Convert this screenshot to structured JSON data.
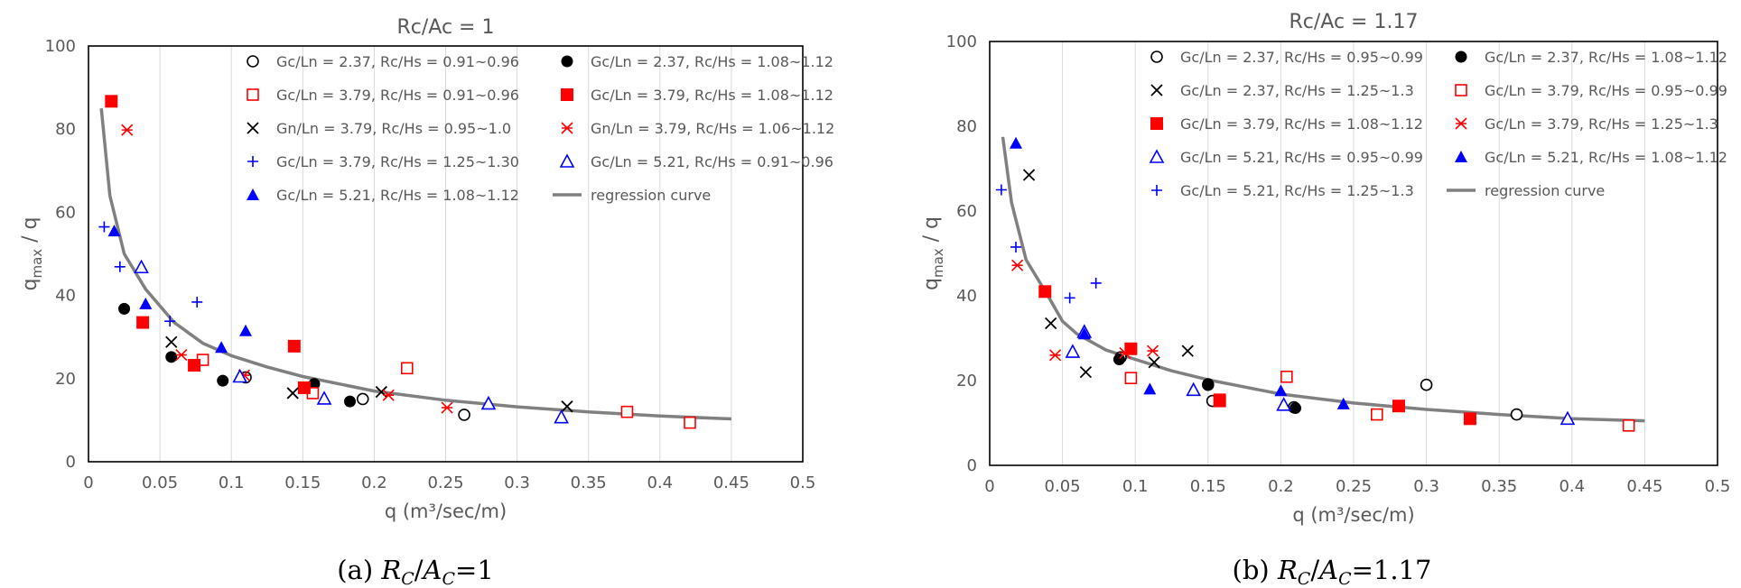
{
  "captions": [
    "(a) R_C/A_C=1",
    "(b) R_C/A_C=1.17"
  ],
  "chart_data": [
    {
      "type": "scatter",
      "title": "Rc/Ac = 1",
      "xlabel": "q (m³/sec/m)",
      "ylabel": "q_max / q",
      "xlim": [
        0,
        0.5
      ],
      "ylim": [
        0,
        100
      ],
      "xticks": [
        "0",
        "0.05",
        "0.1",
        "0.15",
        "0.2",
        "0.25",
        "0.3",
        "0.35",
        "0.4",
        "0.45",
        "0.5"
      ],
      "yticks": [
        "0",
        "20",
        "40",
        "60",
        "80",
        "100"
      ],
      "grid": "vertical",
      "legend_position": "top-right",
      "series": [
        {
          "name": "Gc/Ln = 2.37, Rc/Hs = 0.91~0.96",
          "marker": "circle-open",
          "color": "#000000",
          "points": [
            [
              0.11,
              20.3
            ],
            [
              0.192,
              15.1
            ],
            [
              0.263,
              11.3
            ]
          ]
        },
        {
          "name": "Gc/Ln = 2.37, Rc/Hs = 1.08~1.12",
          "marker": "circle-filled",
          "color": "#000000",
          "points": [
            [
              0.025,
              36.8
            ],
            [
              0.058,
              25.2
            ],
            [
              0.094,
              19.5
            ],
            [
              0.158,
              18.7
            ],
            [
              0.183,
              14.5
            ]
          ]
        },
        {
          "name": "Gc/Ln = 3.79, Rc/Hs = 0.91~0.96",
          "marker": "square-open",
          "color": "#ff0000",
          "points": [
            [
              0.08,
              24.5
            ],
            [
              0.157,
              16.5
            ],
            [
              0.223,
              22.5
            ],
            [
              0.377,
              12.0
            ],
            [
              0.421,
              9.4
            ]
          ]
        },
        {
          "name": "Gc/Ln = 3.79, Rc/Hs = 1.08~1.12",
          "marker": "square-filled",
          "color": "#ff0000",
          "points": [
            [
              0.016,
              86.7
            ],
            [
              0.038,
              33.5
            ],
            [
              0.074,
              23.2
            ],
            [
              0.144,
              27.8
            ],
            [
              0.151,
              17.8
            ]
          ]
        },
        {
          "name": "Gn/Ln = 3.79, Rc/Hs = 0.95~1.0",
          "marker": "x",
          "color": "#000000",
          "points": [
            [
              0.058,
              28.8
            ],
            [
              0.143,
              16.5
            ],
            [
              0.205,
              16.8
            ],
            [
              0.335,
              13.3
            ]
          ]
        },
        {
          "name": "Gn/Ln = 3.79, Rc/Hs = 1.06~1.12",
          "marker": "asterisk",
          "color": "#ff0000",
          "points": [
            [
              0.027,
              79.8
            ],
            [
              0.065,
              25.7
            ],
            [
              0.109,
              20.8
            ],
            [
              0.21,
              16.0
            ],
            [
              0.251,
              13.0
            ]
          ]
        },
        {
          "name": "Gc/Ln = 3.79, Rc/Hs = 1.25~1.30",
          "marker": "plus",
          "color": "#0000ff",
          "points": [
            [
              0.011,
              56.5
            ],
            [
              0.022,
              46.9
            ],
            [
              0.057,
              33.8
            ],
            [
              0.076,
              38.4
            ]
          ]
        },
        {
          "name": "Gc/Ln = 5.21, Rc/Hs = 0.91~0.96",
          "marker": "triangle-open",
          "color": "#0000ff",
          "points": [
            [
              0.037,
              46.8
            ],
            [
              0.106,
              20.5
            ],
            [
              0.165,
              15.2
            ],
            [
              0.28,
              14.0
            ],
            [
              0.331,
              10.7
            ]
          ]
        },
        {
          "name": "Gc/Ln = 5.21, Rc/Hs = 1.08~1.12",
          "marker": "triangle-filled",
          "color": "#0000ff",
          "points": [
            [
              0.018,
              55.5
            ],
            [
              0.04,
              38.0
            ],
            [
              0.093,
              27.5
            ],
            [
              0.11,
              31.5
            ]
          ]
        },
        {
          "name": "regression curve",
          "marker": "line",
          "color": "#808080",
          "points": [
            [
              0.009,
              85.0
            ],
            [
              0.015,
              64.0
            ],
            [
              0.025,
              50.0
            ],
            [
              0.04,
              41.5
            ],
            [
              0.06,
              33.5
            ],
            [
              0.08,
              28.5
            ],
            [
              0.1,
              25.5
            ],
            [
              0.125,
              22.8
            ],
            [
              0.15,
              20.5
            ],
            [
              0.2,
              17.0
            ],
            [
              0.25,
              14.8
            ],
            [
              0.3,
              13.2
            ],
            [
              0.35,
              12.0
            ],
            [
              0.4,
              11.0
            ],
            [
              0.45,
              10.3
            ]
          ]
        }
      ]
    },
    {
      "type": "scatter",
      "title": "Rc/Ac = 1.17",
      "xlabel": "q (m³/sec/m)",
      "ylabel": "q_max / q",
      "xlim": [
        0,
        0.5
      ],
      "ylim": [
        0,
        100
      ],
      "xticks": [
        "0",
        "0.05",
        "0.1",
        "0.15",
        "0.2",
        "0.25",
        "0.3",
        "0.35",
        "0.4",
        "0.45",
        "0.5"
      ],
      "yticks": [
        "0",
        "20",
        "40",
        "60",
        "80",
        "100"
      ],
      "grid": "vertical",
      "legend_position": "top-right",
      "series": [
        {
          "name": "Gc/Ln = 2.37, Rc/Hs = 0.95~0.99",
          "marker": "circle-open",
          "color": "#000000",
          "points": [
            [
              0.09,
              25.5
            ],
            [
              0.15,
              19.0
            ],
            [
              0.153,
              15.2
            ],
            [
              0.209,
              13.7
            ],
            [
              0.3,
              19.0
            ],
            [
              0.362,
              12.0
            ]
          ]
        },
        {
          "name": "Gc/Ln = 2.37, Rc/Hs = 1.08~1.12",
          "marker": "circle-filled",
          "color": "#000000",
          "points": [
            [
              0.089,
              25.0
            ],
            [
              0.15,
              19.2
            ],
            [
              0.21,
              13.5
            ]
          ]
        },
        {
          "name": "Gc/Ln = 2.37, Rc/Hs = 1.25~1.3",
          "marker": "x",
          "color": "#000000",
          "points": [
            [
              0.027,
              68.5
            ],
            [
              0.042,
              33.5
            ],
            [
              0.066,
              22.0
            ],
            [
              0.113,
              24.3
            ],
            [
              0.136,
              27.0
            ]
          ]
        },
        {
          "name": "Gc/Ln = 3.79, Rc/Hs = 0.95~0.99",
          "marker": "square-open",
          "color": "#ff0000",
          "points": [
            [
              0.097,
              20.6
            ],
            [
              0.158,
              15.5
            ],
            [
              0.204,
              20.9
            ],
            [
              0.266,
              12.0
            ],
            [
              0.439,
              9.4
            ]
          ]
        },
        {
          "name": "Gc/Ln = 3.79, Rc/Hs = 1.08~1.12",
          "marker": "square-filled",
          "color": "#ff0000",
          "points": [
            [
              0.038,
              41.0
            ],
            [
              0.097,
              27.5
            ],
            [
              0.158,
              15.2
            ],
            [
              0.281,
              14.0
            ],
            [
              0.33,
              11.0
            ]
          ]
        },
        {
          "name": "Gc/Ln = 3.79, Rc/Hs = 1.25~1.3",
          "marker": "asterisk",
          "color": "#ff0000",
          "points": [
            [
              0.019,
              47.2
            ],
            [
              0.045,
              26.0
            ],
            [
              0.093,
              26.5
            ],
            [
              0.112,
              27.0
            ]
          ]
        },
        {
          "name": "Gc/Ln = 5.21, Rc/Hs = 0.95~0.99",
          "marker": "triangle-open",
          "color": "#0000ff",
          "points": [
            [
              0.057,
              26.8
            ],
            [
              0.065,
              31.5
            ],
            [
              0.14,
              17.8
            ],
            [
              0.202,
              14.3
            ],
            [
              0.397,
              11.0
            ]
          ]
        },
        {
          "name": "Gc/Ln = 5.21, Rc/Hs = 1.08~1.12",
          "marker": "triangle-filled",
          "color": "#0000ff",
          "points": [
            [
              0.018,
              76.0
            ],
            [
              0.065,
              31.0
            ],
            [
              0.11,
              18.0
            ],
            [
              0.2,
              17.6
            ],
            [
              0.243,
              14.5
            ]
          ]
        },
        {
          "name": "Gc/Ln = 5.21, Rc/Hs = 1.25~1.3",
          "marker": "plus",
          "color": "#0000ff",
          "points": [
            [
              0.008,
              65.0
            ],
            [
              0.018,
              51.5
            ],
            [
              0.055,
              39.5
            ],
            [
              0.073,
              43.0
            ]
          ]
        },
        {
          "name": "regression curve",
          "marker": "line",
          "color": "#808080",
          "points": [
            [
              0.009,
              77.5
            ],
            [
              0.015,
              62.0
            ],
            [
              0.025,
              48.5
            ],
            [
              0.04,
              40.0
            ],
            [
              0.05,
              34.0
            ],
            [
              0.06,
              31.0
            ],
            [
              0.08,
              27.2
            ],
            [
              0.1,
              25.0
            ],
            [
              0.125,
              22.3
            ],
            [
              0.15,
              20.2
            ],
            [
              0.2,
              16.8
            ],
            [
              0.25,
              14.7
            ],
            [
              0.3,
              13.2
            ],
            [
              0.35,
              12.0
            ],
            [
              0.4,
              11.0
            ],
            [
              0.45,
              10.5
            ]
          ]
        }
      ]
    }
  ]
}
